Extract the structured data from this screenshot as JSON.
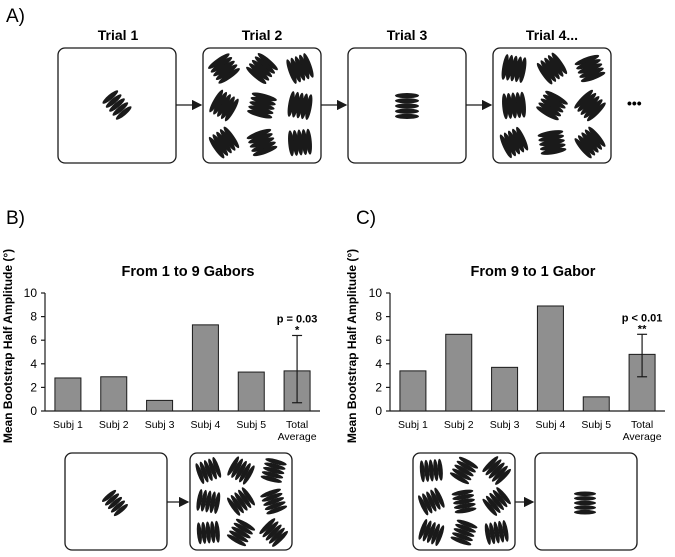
{
  "panels": {
    "a": "A)",
    "b": "B)",
    "c": "C)"
  },
  "trials": [
    "Trial 1",
    "Trial 2",
    "Trial 3",
    "Trial 4..."
  ],
  "ellipsis": "•••",
  "colors": {
    "bar": "#8f8f8f",
    "ink": "#1a1a1a"
  },
  "icons": {
    "gabor": "black-ellipse-patch",
    "arrow": "right-arrow"
  },
  "chart_data": [
    {
      "type": "bar",
      "title": "From 1 to 9 Gabors",
      "ylabel": "Mean Bootstrap Half Amplitude (°)",
      "ylim": [
        0,
        10
      ],
      "yticks": [
        0,
        2,
        4,
        6,
        8,
        10
      ],
      "categories": [
        "Subj 1",
        "Subj 2",
        "Subj 3",
        "Subj 4",
        "Subj 5",
        "Total Average"
      ],
      "values": [
        2.8,
        2.9,
        0.9,
        7.3,
        3.3,
        3.4
      ],
      "error_bar": {
        "category": "Total Average",
        "low": 0.7,
        "high": 6.4
      },
      "annotation": {
        "p": "p = 0.03",
        "stars": "*"
      }
    },
    {
      "type": "bar",
      "title": "From 9 to 1 Gabor",
      "ylabel": "Mean Bootstrap Half Amplitude (°)",
      "ylim": [
        0,
        10
      ],
      "yticks": [
        0,
        2,
        4,
        6,
        8,
        10
      ],
      "categories": [
        "Subj 1",
        "Subj 2",
        "Subj 3",
        "Subj 4",
        "Subj 5",
        "Total Average"
      ],
      "values": [
        3.4,
        6.5,
        3.7,
        8.9,
        1.2,
        4.8
      ],
      "error_bar": {
        "category": "Total Average",
        "low": 2.9,
        "high": 6.5
      },
      "annotation": {
        "p": "p < 0.01",
        "stars": "**"
      }
    }
  ]
}
